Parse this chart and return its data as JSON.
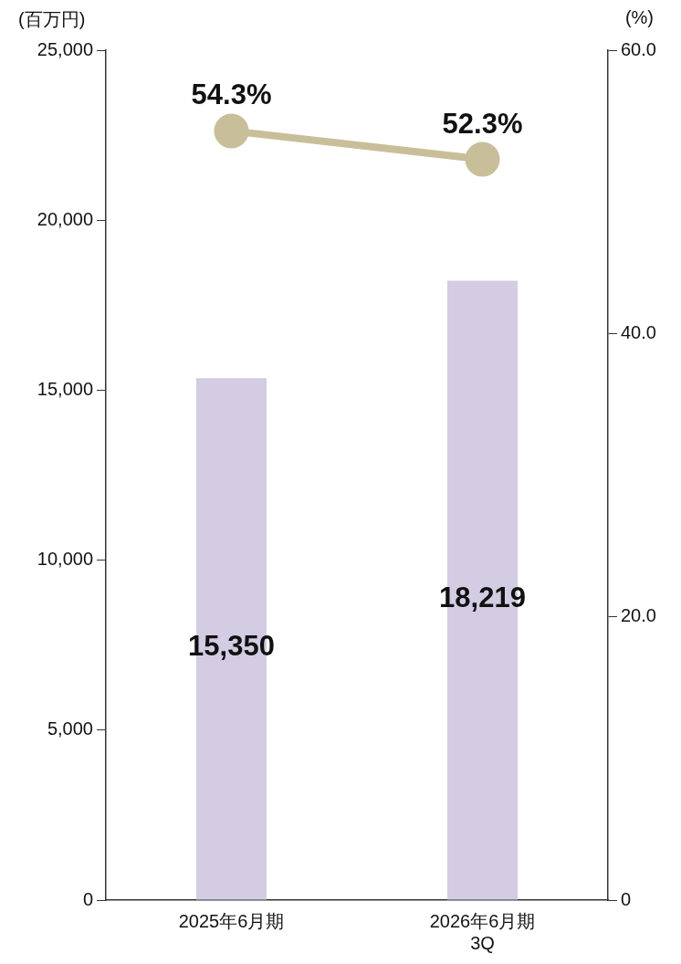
{
  "chart_data": {
    "type": "bar",
    "ylabel": "(百万円)",
    "y2label": "(%)",
    "categories": [
      "2025年6月期",
      "2026年6月期\n3Q"
    ],
    "series": [
      {
        "color": "#d3cce3",
        "values": [
          15350,
          18219
        ],
        "value_labels": [
          "15,350",
          "18,219"
        ]
      },
      {
        "type": "line",
        "axis": "y2",
        "color": "#c8bf9a",
        "values": [
          54.3,
          52.3
        ],
        "value_labels": [
          "54.3%",
          "52.3%"
        ]
      }
    ],
    "ylim": [
      0,
      25000
    ],
    "yticks": [
      0,
      {
        "value": 5000,
        "label": "5,000"
      },
      {
        "value": 10000,
        "label": "10,000"
      },
      {
        "value": 15000,
        "label": "15,000"
      },
      {
        "value": 20000,
        "label": "20,000"
      },
      {
        "value": 25000,
        "label": "25,000"
      }
    ],
    "y2lim": [
      0,
      60
    ],
    "y2ticks": [
      0,
      {
        "value": 20,
        "label": "20.0"
      },
      {
        "value": 40,
        "label": "40.0"
      },
      {
        "value": 60,
        "label": "60.0"
      }
    ],
    "marker": "circle",
    "grid": false,
    "legend": false
  }
}
